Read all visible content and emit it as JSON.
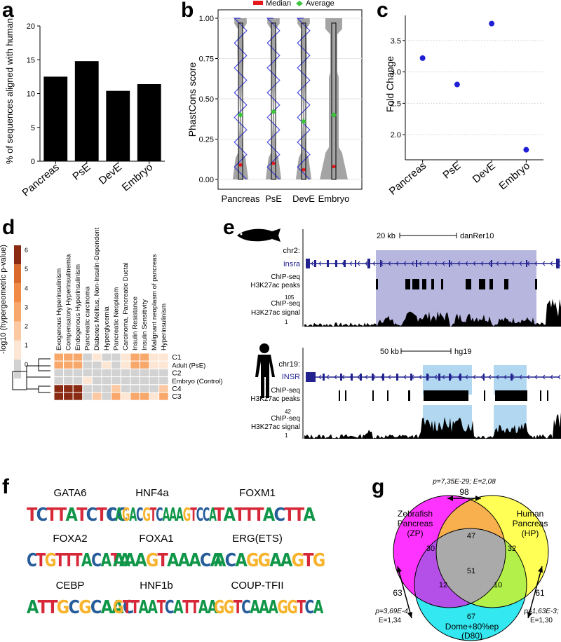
{
  "labels": {
    "a": "a",
    "b": "b",
    "c": "c",
    "d": "d",
    "e": "e",
    "f": "f",
    "g": "g"
  },
  "colors": {
    "bar": "#000000",
    "violin": "#9a9a9a",
    "points": "#1f1fd6",
    "median": "#e31a1c",
    "average": "#3cc43c",
    "fold": "#1f1fd6",
    "heat_low": "#fde9d9",
    "heat_mid": "#f6a35a",
    "heat_high": "#8b2a13",
    "heat_zero": "#cccccc",
    "fish_region": "#a9a9d9",
    "human_region": "#a9d4ee",
    "gene": "#232390"
  },
  "panel_a": {
    "chart_data": {
      "type": "bar",
      "categories": [
        "Pancreas",
        "PsE",
        "DevE",
        "Embryo"
      ],
      "values": [
        12.5,
        14.8,
        10.4,
        11.4
      ],
      "ylabel": "% of sequences aligned with human",
      "ylim": [
        0,
        20
      ],
      "yticks": [
        "0",
        "5",
        "10",
        "15",
        "20"
      ]
    }
  },
  "panel_b": {
    "chart_data": {
      "type": "violin",
      "categories": [
        "Pancreas",
        "PsE",
        "DevE",
        "Embryo"
      ],
      "medians": [
        0.09,
        0.1,
        0.06,
        0.08
      ],
      "averages": [
        0.4,
        0.42,
        0.36,
        0.4
      ],
      "ylabel": "PhastCons score",
      "ylim": [
        0,
        1
      ],
      "yticks": [
        "0.00",
        "0.25",
        "0.50",
        "0.75",
        "1.00"
      ],
      "legend": [
        "Median",
        "Average"
      ]
    }
  },
  "panel_c": {
    "chart_data": {
      "type": "scatter",
      "categories": [
        "Pancreas",
        "PsE",
        "DevE",
        "Embryo"
      ],
      "values": [
        3.22,
        2.8,
        3.77,
        1.76
      ],
      "ylabel": "Fold Change",
      "ylim": [
        1.6,
        3.9
      ],
      "yticks": [
        "2.0",
        "2.5",
        "3.0",
        "3.5"
      ]
    }
  },
  "panel_d": {
    "legend_title": "-log10 (hypergeometric p-value)",
    "legend_ticks": [
      "0",
      "1",
      "2",
      "3",
      "4",
      "5",
      "6"
    ],
    "columns": [
      "Exogenous Hyperinsulinism",
      "Compensatory Hyperinsulinemia",
      "Endogenous Hyperinsulinism",
      "Pancreatic carcinoma",
      "Diabetes Mellitus, Non-Insulin-Dependent",
      "Hyperglycemia",
      "Pancreatic Neoplasm",
      "Carcinoma, Pancreatic Ductal",
      "Insulin Resistance",
      "Insulin Sensitivity",
      "Malignant neoplasm of pancreas",
      "Hyperinsulinism"
    ],
    "rows": [
      "C1",
      "Adult (PsE)",
      "C2",
      "Embryo (Control)",
      "C4",
      "C3"
    ],
    "values": [
      [
        3,
        3,
        3,
        0,
        1,
        0,
        0,
        1,
        3,
        3,
        1,
        1
      ],
      [
        3,
        3,
        3,
        0,
        0,
        1,
        0,
        1,
        3,
        3,
        1,
        1
      ],
      [
        0,
        0,
        0,
        0,
        0,
        0,
        0,
        0,
        0,
        0,
        0,
        0
      ],
      [
        0,
        0,
        0,
        1,
        0,
        0,
        0,
        0,
        0,
        0,
        0,
        0
      ],
      [
        6,
        6,
        6,
        0,
        0,
        0,
        2,
        0,
        0,
        0,
        0,
        2
      ],
      [
        6,
        6,
        6,
        0,
        2,
        0,
        3,
        1,
        3,
        3,
        1,
        3
      ]
    ]
  },
  "panel_e": {
    "fish": {
      "scale": "20 kb",
      "assembly": "danRer10",
      "chr": "chr2:",
      "gene": "insra",
      "peaks_label_1": "ChIP-seq",
      "peaks_label_2": "H3K27ac peaks",
      "signal_label_1": "ChIP-seq",
      "signal_label_2": "H3K27ac signal",
      "max": "105",
      "min": "1"
    },
    "human": {
      "scale": "50 kb",
      "assembly": "hg19",
      "chr": "chr19:",
      "gene": "INSR",
      "peaks_label_1": "ChIP-seq",
      "peaks_label_2": "H3K27ac peaks",
      "signal_label_1": "ChIP-seq",
      "signal_label_2": "H3K27ac signal",
      "max": "42",
      "min": "1"
    }
  },
  "panel_f": {
    "motifs": [
      {
        "name": "GATA6",
        "seq": "TCTTATCTCC"
      },
      {
        "name": "HNF4a",
        "seq": "CAGACGTCAAAGTCCA"
      },
      {
        "name": "FOXM1",
        "seq": "TATTTACTTA"
      },
      {
        "name": "FOXA2",
        "seq": "CTGTTTACATA"
      },
      {
        "name": "FOXA1",
        "seq": "AAAGTAAACA"
      },
      {
        "name": "ERG(ETS)",
        "seq": "ACAGGAAGTG"
      },
      {
        "name": "CEBP",
        "seq": "ATTGCGCAAC"
      },
      {
        "name": "HNF1b",
        "seq": "GTTAATCATTAA"
      },
      {
        "name": "COUP-TFII",
        "seq": "GGTCAAAGGTCA"
      }
    ]
  },
  "panel_g": {
    "zp_1": "Zebrafish",
    "zp_2": "Pancreas",
    "zp_3": "(ZP)",
    "hp_1": "Human",
    "hp_2": "Pancreas",
    "hp_3": "(HP)",
    "d80_1": "Dome+80%ep",
    "d80_2": "(D80)",
    "only_zp": "30",
    "only_hp": "32",
    "only_d80": "67",
    "zp_hp": "47",
    "zp_d80": "12",
    "hp_d80": "10",
    "all": "51",
    "top_n": "98",
    "top_stat": "p=7,35E-29; E=2,08",
    "left_n": "63",
    "left_stat_1": "p=3,69E-4;",
    "left_stat_2": "E=1,34",
    "right_n": "61",
    "right_stat_1": "p=1,63E-3;",
    "right_stat_2": "E=1,30",
    "color_zp": "#ff33ff",
    "color_hp": "#ffff55",
    "color_d80": "#33e8f0",
    "color_zp_hp": "#f8b04e",
    "color_zp_d80": "#b44fe8",
    "color_hp_d80": "#b4f04a",
    "color_all": "#aaaaaa"
  }
}
